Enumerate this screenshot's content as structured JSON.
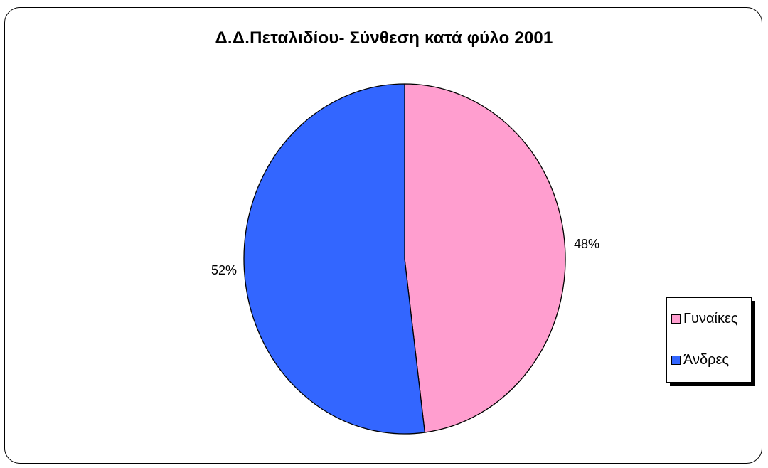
{
  "chart_data": {
    "type": "pie",
    "title": "Δ.Δ.Πεταλιδίου- Σύνθεση κατά φύλο 2001",
    "slices": [
      {
        "name": "Γυναίκες",
        "value": 48,
        "label": "48%",
        "color": "#FF9ECF"
      },
      {
        "name": "Άνδρες",
        "value": 52,
        "label": "52%",
        "color": "#3366FF"
      }
    ],
    "legend_position": "right"
  }
}
